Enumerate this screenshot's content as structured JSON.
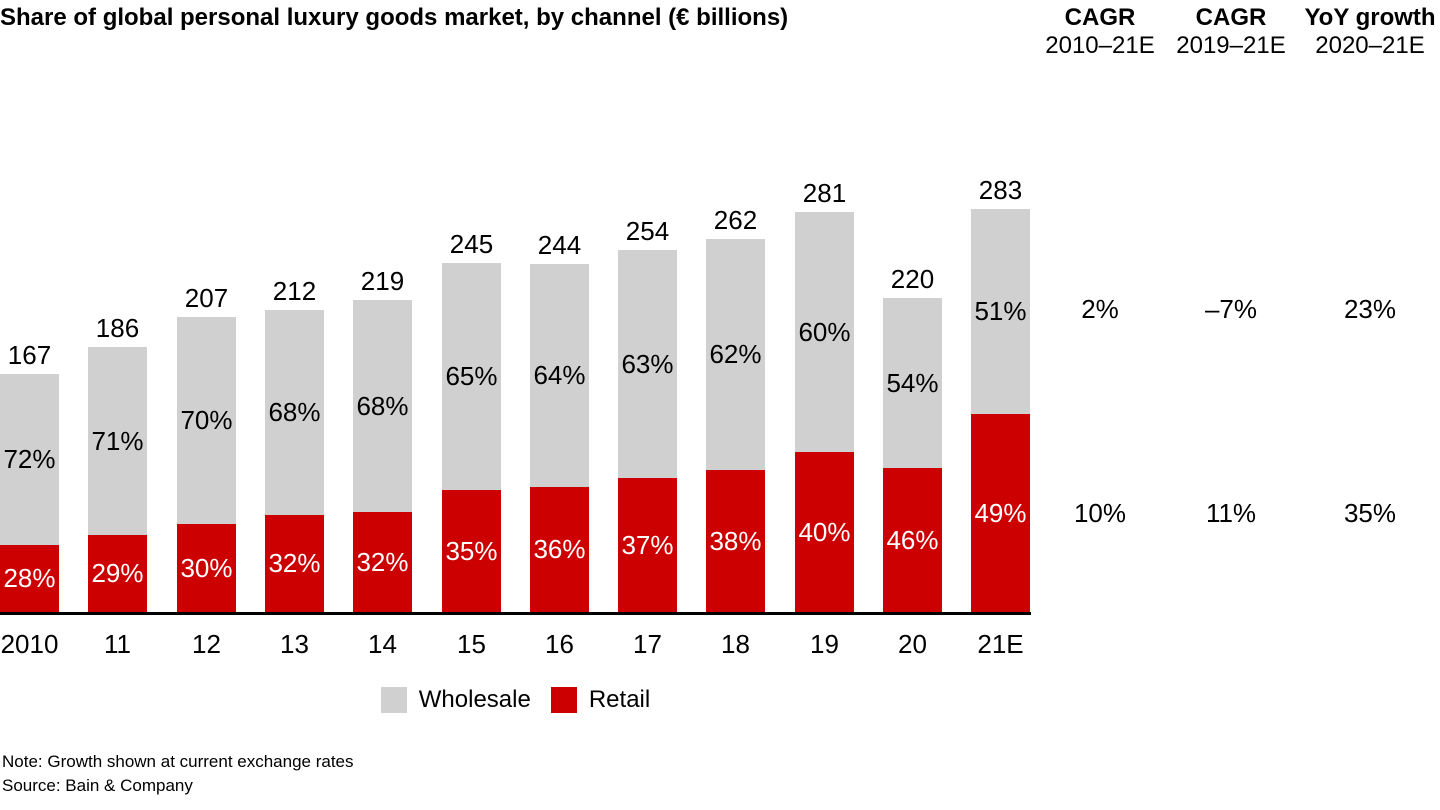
{
  "title": "Share of global personal luxury goods market, by channel (€ billions)",
  "footnotes": {
    "note": "Note: Growth shown at current exchange rates",
    "source": "Source: Bain & Company"
  },
  "legend": [
    {
      "label": "Wholesale",
      "color": "#D0D0D0"
    },
    {
      "label": "Retail",
      "color": "#CC0000"
    }
  ],
  "stat_columns": {
    "headers": [
      {
        "line1": "CAGR",
        "line2": "2010–21E"
      },
      {
        "line1": "CAGR",
        "line2": "2019–21E"
      },
      {
        "line1": "YoY growth",
        "line2": "2020–21E"
      }
    ],
    "rows": [
      {
        "series": "Wholesale",
        "values": [
          "2%",
          "–7%",
          "23%"
        ]
      },
      {
        "series": "Retail",
        "values": [
          "10%",
          "11%",
          "35%"
        ]
      }
    ]
  },
  "chart_data": {
    "type": "bar",
    "stacked": true,
    "title": "Share of global personal luxury goods market, by channel (€ billions)",
    "xlabel": "",
    "ylabel": "€ billions",
    "grid": false,
    "legend_position": "bottom",
    "categories": [
      "2010",
      "11",
      "12",
      "13",
      "14",
      "15",
      "16",
      "17",
      "18",
      "19",
      "20",
      "21E"
    ],
    "totals": [
      167,
      186,
      207,
      212,
      219,
      245,
      244,
      254,
      262,
      281,
      220,
      283
    ],
    "series": [
      {
        "name": "Wholesale",
        "color": "#D0D0D0",
        "share_pct": [
          72,
          71,
          70,
          68,
          68,
          65,
          64,
          63,
          62,
          60,
          54,
          51
        ]
      },
      {
        "name": "Retail",
        "color": "#CC0000",
        "share_pct": [
          28,
          29,
          30,
          32,
          32,
          35,
          36,
          37,
          38,
          40,
          46,
          49
        ]
      }
    ],
    "label_unit": "%",
    "annotations": {
      "wholesale_cagr_2010_21e": "2%",
      "wholesale_cagr_2019_21e": "–7%",
      "wholesale_yoy_2020_21e": "23%",
      "retail_cagr_2010_21e": "10%",
      "retail_cagr_2019_21e": "11%",
      "retail_yoy_2020_21e": "35%"
    }
  }
}
